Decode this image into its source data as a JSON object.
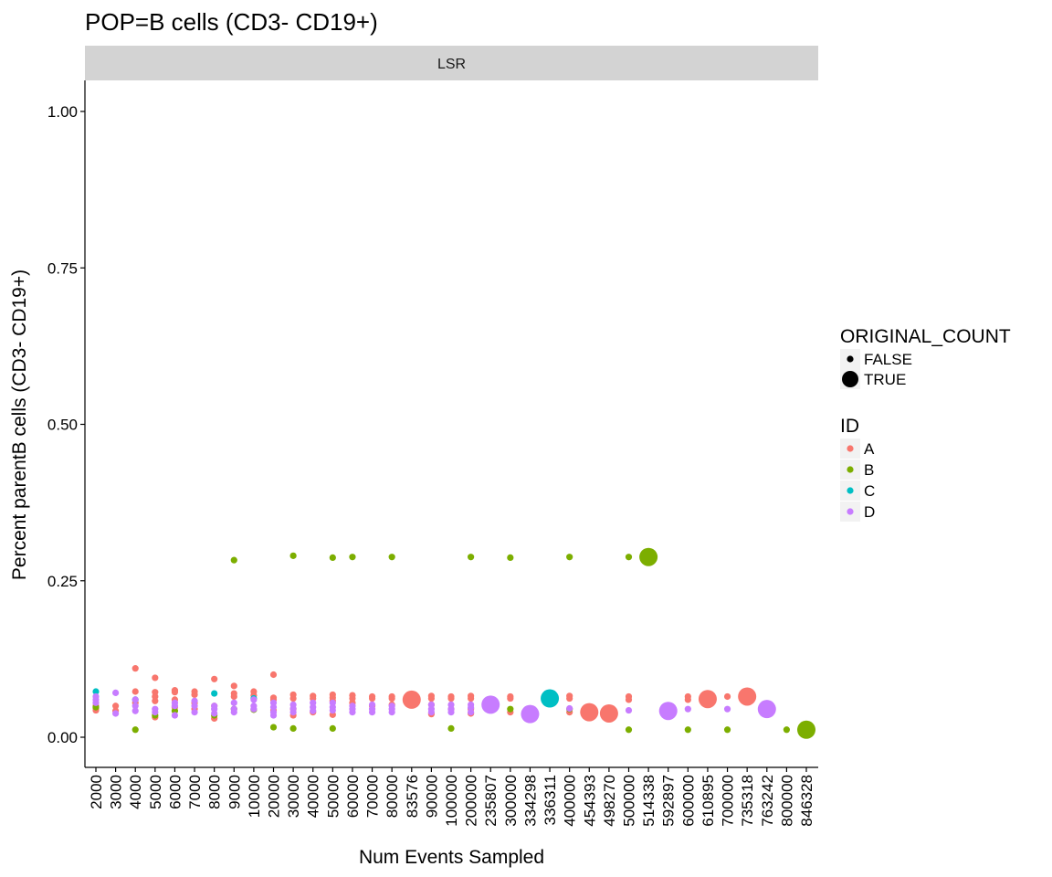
{
  "chart_data": {
    "type": "scatter",
    "title": "POP=B cells (CD3- CD19+)",
    "facet": "LSR",
    "xlabel": "Num Events Sampled",
    "ylabel": "Percent parentB cells (CD3- CD19+)",
    "ylim": [
      -0.05,
      1.05
    ],
    "yticks": [
      0.0,
      0.25,
      0.5,
      0.75,
      1.0
    ],
    "ytick_labels": [
      "0.00",
      "0.25",
      "0.50",
      "0.75",
      "1.00"
    ],
    "grid": false,
    "categories": [
      "2000",
      "3000",
      "4000",
      "5000",
      "6000",
      "7000",
      "8000",
      "9000",
      "10000",
      "20000",
      "30000",
      "40000",
      "50000",
      "60000",
      "70000",
      "80000",
      "83576",
      "90000",
      "100000",
      "200000",
      "235807",
      "300000",
      "334298",
      "336311",
      "400000",
      "454393",
      "498270",
      "500000",
      "514338",
      "592897",
      "600000",
      "610895",
      "700000",
      "735318",
      "763242",
      "800000",
      "846328"
    ],
    "colors": {
      "A": "#F8766D",
      "B": "#7CAE00",
      "C": "#00BFC4",
      "D": "#C77CFF"
    },
    "legend_size": {
      "title": "ORIGINAL_COUNT",
      "items": [
        "FALSE",
        "TRUE"
      ]
    },
    "legend_color": {
      "title": "ID",
      "items": [
        "A",
        "B",
        "C",
        "D"
      ]
    },
    "legend_position": "right",
    "series": [
      {
        "name": "A",
        "points": [
          {
            "x": "2000",
            "y": [
              0.043,
              0.046,
              0.05
            ]
          },
          {
            "x": "3000",
            "y": [
              0.05,
              0.042
            ]
          },
          {
            "x": "4000",
            "y": [
              0.11,
              0.073,
              0.055
            ]
          },
          {
            "x": "5000",
            "y": [
              0.095,
              0.072,
              0.065,
              0.058,
              0.032
            ]
          },
          {
            "x": "6000",
            "y": [
              0.075,
              0.072,
              0.06,
              0.048
            ]
          },
          {
            "x": "7000",
            "y": [
              0.073,
              0.068,
              0.055,
              0.045
            ]
          },
          {
            "x": "8000",
            "y": [
              0.093,
              0.05,
              0.03
            ]
          },
          {
            "x": "9000",
            "y": [
              0.082,
              0.07,
              0.065
            ]
          },
          {
            "x": "10000",
            "y": [
              0.073,
              0.067
            ]
          },
          {
            "x": "20000",
            "y": [
              0.1,
              0.063,
              0.06,
              0.043
            ]
          },
          {
            "x": "30000",
            "y": [
              0.068,
              0.062,
              0.045,
              0.035
            ]
          },
          {
            "x": "40000",
            "y": [
              0.066,
              0.062,
              0.04
            ]
          },
          {
            "x": "50000",
            "y": [
              0.068,
              0.063,
              0.058,
              0.036
            ]
          },
          {
            "x": "60000",
            "y": [
              0.067,
              0.062,
              0.055
            ]
          },
          {
            "x": "70000",
            "y": [
              0.065,
              0.062,
              0.05
            ]
          },
          {
            "x": "80000",
            "y": [
              0.065,
              0.062,
              0.052
            ]
          },
          {
            "x": "83576",
            "y": [
              0.06
            ],
            "original": true
          },
          {
            "x": "90000",
            "y": [
              0.066,
              0.062,
              0.052,
              0.037
            ]
          },
          {
            "x": "100000",
            "y": [
              0.065,
              0.062,
              0.045
            ]
          },
          {
            "x": "200000",
            "y": [
              0.066,
              0.062,
              0.045,
              0.038
            ]
          },
          {
            "x": "300000",
            "y": [
              0.065,
              0.062,
              0.04
            ]
          },
          {
            "x": "400000",
            "y": [
              0.066,
              0.062,
              0.04
            ]
          },
          {
            "x": "454393",
            "y": [
              0.04
            ],
            "original": true
          },
          {
            "x": "498270",
            "y": [
              0.038
            ],
            "original": true
          },
          {
            "x": "500000",
            "y": [
              0.065,
              0.06
            ]
          },
          {
            "x": "600000",
            "y": [
              0.065,
              0.06
            ]
          },
          {
            "x": "610895",
            "y": [
              0.061
            ],
            "original": true
          },
          {
            "x": "700000",
            "y": [
              0.065
            ]
          },
          {
            "x": "735318",
            "y": [
              0.065
            ],
            "original": true
          }
        ]
      },
      {
        "name": "B",
        "points": [
          {
            "x": "2000",
            "y": [
              0.048
            ]
          },
          {
            "x": "4000",
            "y": [
              0.012
            ]
          },
          {
            "x": "5000",
            "y": [
              0.035
            ]
          },
          {
            "x": "6000",
            "y": [
              0.042
            ]
          },
          {
            "x": "8000",
            "y": [
              0.035
            ]
          },
          {
            "x": "9000",
            "y": [
              0.283,
              0.045
            ]
          },
          {
            "x": "10000",
            "y": [
              0.044
            ]
          },
          {
            "x": "20000",
            "y": [
              0.016
            ]
          },
          {
            "x": "30000",
            "y": [
              0.29,
              0.014
            ]
          },
          {
            "x": "50000",
            "y": [
              0.287,
              0.014
            ]
          },
          {
            "x": "60000",
            "y": [
              0.288
            ]
          },
          {
            "x": "80000",
            "y": [
              0.288
            ]
          },
          {
            "x": "100000",
            "y": [
              0.014
            ]
          },
          {
            "x": "200000",
            "y": [
              0.288
            ]
          },
          {
            "x": "300000",
            "y": [
              0.287,
              0.045
            ]
          },
          {
            "x": "400000",
            "y": [
              0.288,
              0.045
            ]
          },
          {
            "x": "500000",
            "y": [
              0.288,
              0.012
            ]
          },
          {
            "x": "514338",
            "y": [
              0.288
            ],
            "original": true
          },
          {
            "x": "600000",
            "y": [
              0.012
            ]
          },
          {
            "x": "700000",
            "y": [
              0.012
            ]
          },
          {
            "x": "800000",
            "y": [
              0.012
            ]
          },
          {
            "x": "846328",
            "y": [
              0.012
            ],
            "original": true
          }
        ]
      },
      {
        "name": "C",
        "points": [
          {
            "x": "2000",
            "y": [
              0.073
            ]
          },
          {
            "x": "4000",
            "y": [
              0.06
            ]
          },
          {
            "x": "8000",
            "y": [
              0.07
            ]
          },
          {
            "x": "10000",
            "y": [
              0.062
            ]
          },
          {
            "x": "336311",
            "y": [
              0.062
            ],
            "original": true
          }
        ]
      },
      {
        "name": "D",
        "points": [
          {
            "x": "2000",
            "y": [
              0.065,
              0.06,
              0.055
            ]
          },
          {
            "x": "3000",
            "y": [
              0.071,
              0.038
            ]
          },
          {
            "x": "4000",
            "y": [
              0.06,
              0.05,
              0.042
            ]
          },
          {
            "x": "5000",
            "y": [
              0.045,
              0.04
            ]
          },
          {
            "x": "6000",
            "y": [
              0.055,
              0.05,
              0.035
            ]
          },
          {
            "x": "7000",
            "y": [
              0.058,
              0.05,
              0.04
            ]
          },
          {
            "x": "8000",
            "y": [
              0.05,
              0.045,
              0.038
            ]
          },
          {
            "x": "9000",
            "y": [
              0.055,
              0.045,
              0.04
            ]
          },
          {
            "x": "10000",
            "y": [
              0.06,
              0.05,
              0.045
            ]
          },
          {
            "x": "20000",
            "y": [
              0.055,
              0.048,
              0.04,
              0.035
            ]
          },
          {
            "x": "30000",
            "y": [
              0.052,
              0.046,
              0.04
            ]
          },
          {
            "x": "40000",
            "y": [
              0.055,
              0.048,
              0.042
            ]
          },
          {
            "x": "50000",
            "y": [
              0.055,
              0.048,
              0.043
            ]
          },
          {
            "x": "60000",
            "y": [
              0.05,
              0.045,
              0.04
            ]
          },
          {
            "x": "70000",
            "y": [
              0.052,
              0.045,
              0.04
            ]
          },
          {
            "x": "80000",
            "y": [
              0.05,
              0.045,
              0.04
            ]
          },
          {
            "x": "90000",
            "y": [
              0.052,
              0.045,
              0.04
            ]
          },
          {
            "x": "100000",
            "y": [
              0.052,
              0.045,
              0.04
            ]
          },
          {
            "x": "200000",
            "y": [
              0.052,
              0.047,
              0.04
            ]
          },
          {
            "x": "235807",
            "y": [
              0.052
            ],
            "original": true
          },
          {
            "x": "334298",
            "y": [
              0.037
            ],
            "original": true
          },
          {
            "x": "400000",
            "y": [
              0.046
            ]
          },
          {
            "x": "500000",
            "y": [
              0.043
            ]
          },
          {
            "x": "592897",
            "y": [
              0.042
            ],
            "original": true
          },
          {
            "x": "600000",
            "y": [
              0.045
            ]
          },
          {
            "x": "700000",
            "y": [
              0.045
            ]
          },
          {
            "x": "763242",
            "y": [
              0.045
            ],
            "original": true
          }
        ]
      }
    ]
  }
}
